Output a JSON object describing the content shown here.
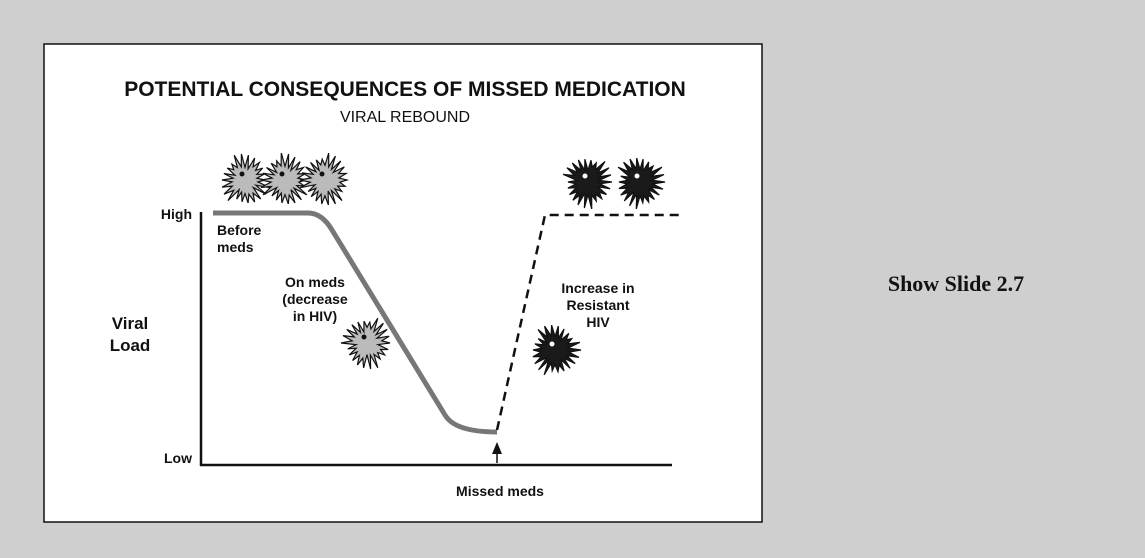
{
  "slide": {
    "title": "POTENTIAL CONSEQUENCES OF MISSED MEDICATION",
    "subtitle": "VIRAL REBOUND",
    "y_axis_label": [
      "Viral",
      "Load"
    ],
    "y_high": "High",
    "y_low": "Low",
    "before_meds": [
      "Before",
      "meds"
    ],
    "on_meds": [
      "On meds",
      "(decrease",
      "in HIV)"
    ],
    "increase": [
      "Increase in",
      "Resistant",
      "HIV"
    ],
    "missed_meds": "Missed meds"
  },
  "side_note": "Show Slide 2.7"
}
